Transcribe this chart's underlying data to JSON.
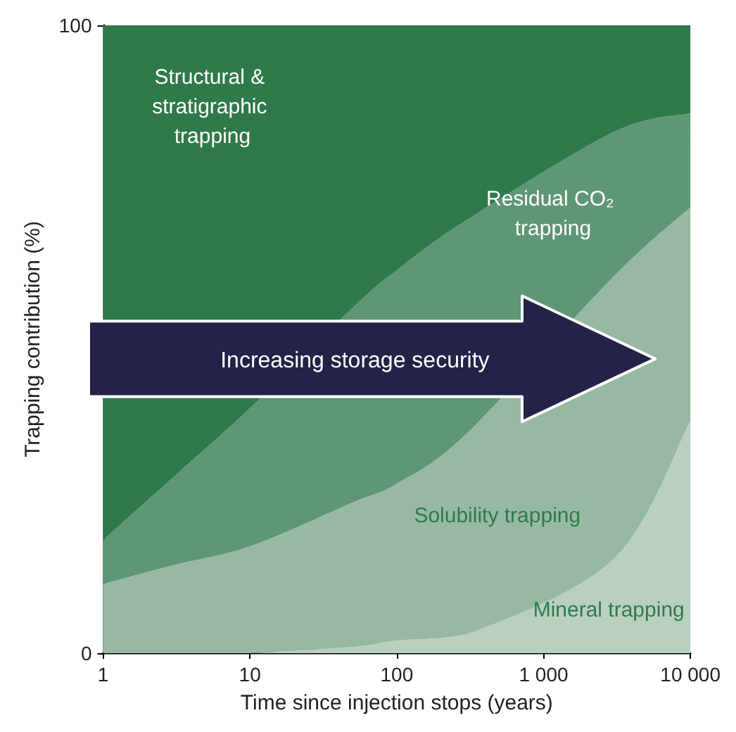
{
  "chart_data": {
    "type": "area",
    "stacked": true,
    "xlabel": "Time since injection stops (years)",
    "ylabel": "Trapping contribution (%)",
    "log": "x",
    "x": [
      1,
      3,
      10,
      50,
      100,
      300,
      3000,
      10000
    ],
    "series": [
      {
        "name": "Mineral trapping",
        "color": "#b9d0c1",
        "values": [
          0,
          0,
          0,
          1,
          2,
          3,
          15,
          37
        ]
      },
      {
        "name": "Solubility trapping",
        "color": "#97b9a3",
        "values": [
          11,
          14,
          17,
          23,
          25,
          32,
          45,
          34
        ]
      },
      {
        "name": "Residual CO₂ trapping",
        "color": "#5e9676",
        "values": [
          7,
          14,
          22,
          31,
          34,
          34,
          23,
          15
        ]
      },
      {
        "name": "Structural & stratigraphic trapping",
        "color": "#2f7a4a",
        "values": [
          82,
          72,
          61,
          45,
          39,
          31,
          17,
          14
        ]
      }
    ],
    "annotations": [
      "Increasing storage security"
    ],
    "xlim": [
      1,
      10000
    ],
    "ylim": [
      0,
      100
    ],
    "xticks": [
      1,
      10,
      100,
      {
        "value": 1000,
        "label": "1 000"
      },
      {
        "value": 10000,
        "label": "10 000"
      }
    ],
    "yticks": [
      0,
      100
    ],
    "grid": false,
    "legend": false
  }
}
